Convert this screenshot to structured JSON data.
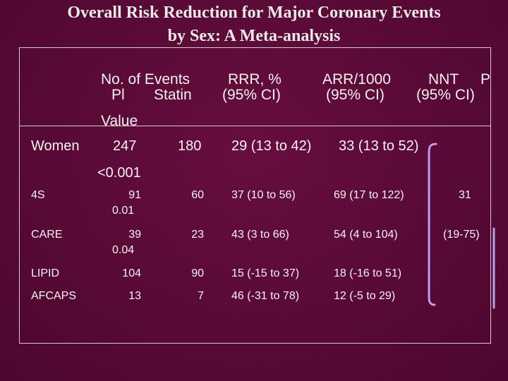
{
  "title": {
    "line1": "Overall Risk Reduction for Major Coronary Events",
    "line2": "by Sex: A Meta-analysis"
  },
  "headers": {
    "events_top": "No. of Events",
    "events_pl": "Pl",
    "events_statin": "Statin",
    "rrr_top": "RRR, %",
    "rrr_ci": "(95% CI)",
    "arr_top": "ARR/1000",
    "arr_ci": "(95% CI)",
    "nnt_top": "NNT",
    "nnt_ci": "(95% CI)",
    "p_top": "P",
    "p_value": "Value"
  },
  "women": {
    "label": "Women",
    "pl": "247",
    "statin": "180",
    "rrr": "29 (13 to 42)",
    "arr": "33 (13 to 52)",
    "p": "<0.001"
  },
  "trials": [
    {
      "name": "4S",
      "pl": "91",
      "p": "0.01",
      "statin": "60",
      "rrr": "37 (10 to 56)",
      "arr": "69 (17 to 122)"
    },
    {
      "name": "CARE",
      "pl": "39",
      "p": "0.04",
      "statin": "23",
      "rrr": "43 (3 to 66)",
      "arr": "54 (4 to 104)"
    },
    {
      "name": "LIPID",
      "pl": "104",
      "statin": "90",
      "rrr": "15 (-15 to 37)",
      "arr": "18 (-16 to 51)"
    },
    {
      "name": "AFCAPS",
      "pl": "13",
      "statin": "7",
      "rrr": "46 (-31 to 78)",
      "arr": "12 (-5 to 29)"
    }
  ],
  "nnt": {
    "value": "31",
    "ci": "(19-75)"
  },
  "colors": {
    "background": "#5c0a36",
    "bracket": "#b8a0ec",
    "text": "#ffffff"
  }
}
